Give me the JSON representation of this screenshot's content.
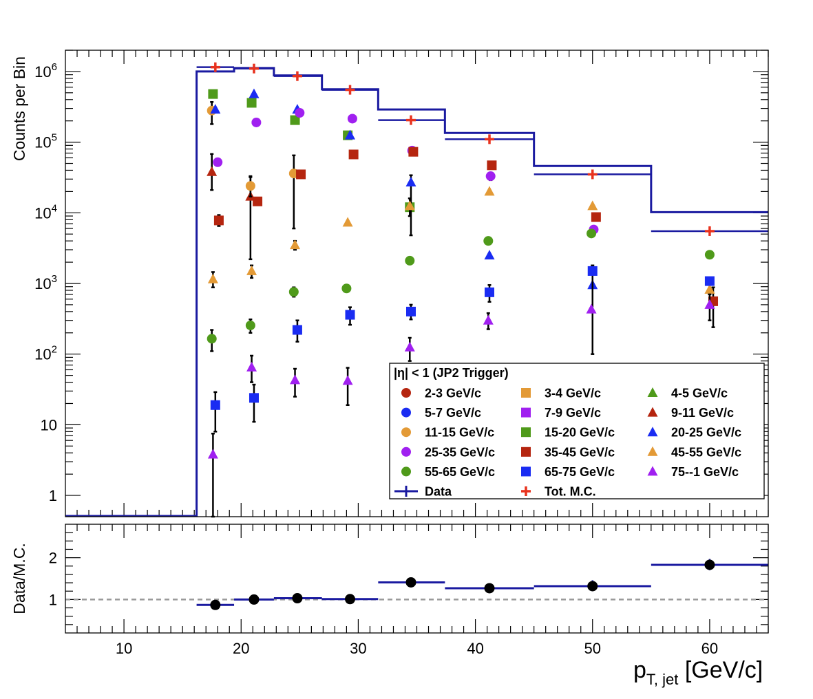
{
  "chart_data": [
    {
      "type": "scatter",
      "panel": "top",
      "ylabel": "Counts per Bin",
      "yscale": "log",
      "ylim": [
        0.5,
        2000000
      ],
      "xlim": [
        5,
        65
      ],
      "y_tick_labels": [
        "1",
        "10",
        "10^2",
        "10^3",
        "10^4",
        "10^5",
        "10^6"
      ],
      "legend": {
        "title": "|η| < 1 (JP2 Trigger)",
        "placement": "bottom-right",
        "entries": [
          {
            "label": "2-3 GeV/c",
            "marker": "circle",
            "color": "#b5250f"
          },
          {
            "label": "3-4 GeV/c",
            "marker": "square",
            "color": "#e39a36"
          },
          {
            "label": "4-5 GeV/c",
            "marker": "triangle",
            "color": "#4f9a1a"
          },
          {
            "label": "5-7 GeV/c",
            "marker": "circle",
            "color": "#1a2cf2"
          },
          {
            "label": "7-9 GeV/c",
            "marker": "square",
            "color": "#a020f0"
          },
          {
            "label": "9-11 GeV/c",
            "marker": "triangle",
            "color": "#b5250f"
          },
          {
            "label": "11-15 GeV/c",
            "marker": "circle",
            "color": "#e39a36"
          },
          {
            "label": "15-20 GeV/c",
            "marker": "square",
            "color": "#4f9a1a"
          },
          {
            "label": "20-25 GeV/c",
            "marker": "triangle",
            "color": "#1a2cf2"
          },
          {
            "label": "25-35 GeV/c",
            "marker": "circle",
            "color": "#a020f0"
          },
          {
            "label": "35-45 GeV/c",
            "marker": "square",
            "color": "#b5250f"
          },
          {
            "label": "45-55 GeV/c",
            "marker": "triangle",
            "color": "#e39a36"
          },
          {
            "label": "55-65 GeV/c",
            "marker": "circle",
            "color": "#4f9a1a"
          },
          {
            "label": "65-75 GeV/c",
            "marker": "square",
            "color": "#1a2cf2"
          },
          {
            "label": "75--1 GeV/c",
            "marker": "triangle",
            "color": "#a020f0"
          },
          {
            "label": "Data",
            "marker": "line",
            "color": "#1a1aa0"
          },
          {
            "label": "Tot. M.C.",
            "marker": "cross",
            "color": "#e8321e"
          }
        ]
      },
      "data_histogram": {
        "name": "Data",
        "color": "#1a1aa0",
        "edges": [
          5,
          16.2,
          19.4,
          22.8,
          26.9,
          31.7,
          37.4,
          45.0,
          55.0,
          65.0
        ],
        "values": [
          0.5,
          1000000,
          1120000,
          880000,
          560000,
          290000,
          135000,
          46000,
          10200
        ]
      },
      "tot_mc": {
        "name": "Tot. M.C.",
        "color": "#e8321e",
        "points": [
          {
            "x": 17.8,
            "y": 1150000,
            "xlo": 16.2,
            "xhi": 19.4
          },
          {
            "x": 21.1,
            "y": 1100000,
            "xlo": 19.4,
            "xhi": 22.8
          },
          {
            "x": 24.8,
            "y": 860000,
            "xlo": 22.8,
            "xhi": 26.9
          },
          {
            "x": 29.3,
            "y": 550000,
            "xlo": 26.9,
            "xhi": 31.7
          },
          {
            "x": 34.5,
            "y": 205000,
            "xlo": 31.7,
            "xhi": 37.4
          },
          {
            "x": 41.2,
            "y": 110000,
            "xlo": 37.4,
            "xhi": 45.0
          },
          {
            "x": 50.0,
            "y": 35000,
            "xlo": 45.0,
            "xhi": 55.0
          },
          {
            "x": 60.0,
            "y": 5500,
            "xlo": 55.0,
            "xhi": 65.0
          }
        ]
      },
      "series": [
        {
          "name": "9-11 GeV/c",
          "marker": "triangle",
          "color": "#b5250f",
          "points": [
            {
              "x": 17.5,
              "y": 38000,
              "ylo": 21000,
              "yhi": 68000
            },
            {
              "x": 20.8,
              "y": 17000,
              "ylo": 2200,
              "yhi": 32000
            }
          ]
        },
        {
          "name": "11-15 GeV/c",
          "marker": "circle",
          "color": "#e39a36",
          "points": [
            {
              "x": 17.5,
              "y": 280000,
              "ylo": 180000,
              "yhi": 370000
            },
            {
              "x": 20.8,
              "y": 24000,
              "ylo": 17000,
              "yhi": 33000
            },
            {
              "x": 24.5,
              "y": 36000,
              "ylo": 6000,
              "yhi": 65000
            }
          ]
        },
        {
          "name": "15-20 GeV/c",
          "marker": "square",
          "color": "#4f9a1a",
          "points": [
            {
              "x": 17.6,
              "y": 480000
            },
            {
              "x": 20.9,
              "y": 360000
            },
            {
              "x": 24.6,
              "y": 205000
            },
            {
              "x": 29.1,
              "y": 125000
            },
            {
              "x": 34.4,
              "y": 12000
            }
          ]
        },
        {
          "name": "20-25 GeV/c",
          "marker": "triangle",
          "color": "#1a2cf2",
          "points": [
            {
              "x": 17.8,
              "y": 290000
            },
            {
              "x": 21.1,
              "y": 480000
            },
            {
              "x": 24.8,
              "y": 290000
            },
            {
              "x": 29.3,
              "y": 125000
            },
            {
              "x": 34.5,
              "y": 27000,
              "ylo": 4800,
              "yhi": 34000
            },
            {
              "x": 41.2,
              "y": 2500
            },
            {
              "x": 50.0,
              "y": 950
            }
          ]
        },
        {
          "name": "25-35 GeV/c",
          "marker": "circle",
          "color": "#a020f0",
          "points": [
            {
              "x": 18.0,
              "y": 52000,
              "ylo": 46000,
              "yhi": 58000
            },
            {
              "x": 21.3,
              "y": 190000
            },
            {
              "x": 25.0,
              "y": 260000
            },
            {
              "x": 29.5,
              "y": 215000
            },
            {
              "x": 34.6,
              "y": 76000
            },
            {
              "x": 41.3,
              "y": 33000,
              "ylo": 29000,
              "yhi": 37000
            },
            {
              "x": 50.1,
              "y": 5800
            }
          ]
        },
        {
          "name": "35-45 GeV/c",
          "marker": "square",
          "color": "#b5250f",
          "points": [
            {
              "x": 18.1,
              "y": 7800,
              "ylo": 6500,
              "yhi": 9300
            },
            {
              "x": 21.4,
              "y": 14500
            },
            {
              "x": 25.1,
              "y": 35000
            },
            {
              "x": 29.6,
              "y": 67000
            },
            {
              "x": 34.7,
              "y": 73000
            },
            {
              "x": 41.4,
              "y": 47000
            },
            {
              "x": 50.3,
              "y": 8700
            },
            {
              "x": 60.3,
              "y": 560,
              "ylo": 240,
              "yhi": 880
            }
          ]
        },
        {
          "name": "45-55 GeV/c",
          "marker": "triangle",
          "color": "#e39a36",
          "points": [
            {
              "x": 17.6,
              "y": 1150,
              "ylo": 880,
              "yhi": 1450
            },
            {
              "x": 20.9,
              "y": 1500,
              "ylo": 1200,
              "yhi": 1800
            },
            {
              "x": 24.6,
              "y": 3500,
              "ylo": 3000,
              "yhi": 4000
            },
            {
              "x": 29.1,
              "y": 7300
            },
            {
              "x": 34.4,
              "y": 12500,
              "ylo": 9000,
              "yhi": 16000
            },
            {
              "x": 41.2,
              "y": 20000
            },
            {
              "x": 50.0,
              "y": 12500
            },
            {
              "x": 60.0,
              "y": 820
            }
          ]
        },
        {
          "name": "55-65 GeV/c",
          "marker": "circle",
          "color": "#4f9a1a",
          "points": [
            {
              "x": 17.5,
              "y": 165,
              "ylo": 110,
              "yhi": 220
            },
            {
              "x": 20.8,
              "y": 255,
              "ylo": 200,
              "yhi": 310
            },
            {
              "x": 24.5,
              "y": 760,
              "ylo": 650,
              "yhi": 880
            },
            {
              "x": 29.0,
              "y": 850
            },
            {
              "x": 34.4,
              "y": 2100
            },
            {
              "x": 41.1,
              "y": 4000
            },
            {
              "x": 49.9,
              "y": 5100
            },
            {
              "x": 60.0,
              "y": 2550
            }
          ]
        },
        {
          "name": "65-75 GeV/c",
          "marker": "square",
          "color": "#1a2cf2",
          "points": [
            {
              "x": 17.8,
              "y": 19,
              "ylo": 8,
              "yhi": 29
            },
            {
              "x": 21.1,
              "y": 24,
              "ylo": 11,
              "yhi": 37
            },
            {
              "x": 24.8,
              "y": 220,
              "ylo": 150,
              "yhi": 300
            },
            {
              "x": 29.3,
              "y": 360,
              "ylo": 260,
              "yhi": 460
            },
            {
              "x": 34.5,
              "y": 400,
              "ylo": 310,
              "yhi": 500
            },
            {
              "x": 41.2,
              "y": 750,
              "ylo": 550,
              "yhi": 950
            },
            {
              "x": 50.0,
              "y": 1500,
              "ylo": 100,
              "yhi": 1800
            },
            {
              "x": 60.0,
              "y": 1080
            }
          ]
        },
        {
          "name": "75--1 GeV/c",
          "marker": "triangle",
          "color": "#a020f0",
          "points": [
            {
              "x": 17.6,
              "y": 3.8,
              "ylo": 0.5,
              "yhi": 7.5
            },
            {
              "x": 20.9,
              "y": 65,
              "ylo": 40,
              "yhi": 95
            },
            {
              "x": 24.6,
              "y": 43,
              "ylo": 25,
              "yhi": 62
            },
            {
              "x": 29.1,
              "y": 42,
              "ylo": 19,
              "yhi": 64
            },
            {
              "x": 34.4,
              "y": 125,
              "ylo": 80,
              "yhi": 170
            },
            {
              "x": 41.1,
              "y": 300,
              "ylo": 225,
              "yhi": 380
            },
            {
              "x": 49.9,
              "y": 430
            },
            {
              "x": 60.0,
              "y": 500,
              "ylo": 300,
              "yhi": 700
            }
          ]
        }
      ]
    },
    {
      "type": "scatter",
      "panel": "bottom",
      "ylabel": "Data/M.C.",
      "xlabel": "p_{T, jet} [GeV/c]",
      "xlabel_main": "p",
      "xlabel_sub": "T, jet",
      "xlabel_unit": " [GeV/c]",
      "ylim": [
        0.2,
        2.8
      ],
      "xlim": [
        5,
        65
      ],
      "y_ticks": [
        1,
        2
      ],
      "x_ticks": [
        10,
        20,
        30,
        40,
        50,
        60
      ],
      "reference_line": 1,
      "ratio_line_color": "#1a1aa0",
      "points": [
        {
          "x": 17.8,
          "y": 0.87,
          "xlo": 16.2,
          "xhi": 19.4,
          "ylo": 0.84,
          "yhi": 0.9
        },
        {
          "x": 21.1,
          "y": 1.0,
          "xlo": 19.4,
          "xhi": 22.8,
          "ylo": 0.97,
          "yhi": 1.03
        },
        {
          "x": 24.8,
          "y": 1.03,
          "xlo": 22.8,
          "xhi": 26.9,
          "ylo": 1.0,
          "yhi": 1.06
        },
        {
          "x": 29.3,
          "y": 1.01,
          "xlo": 26.9,
          "xhi": 31.7,
          "ylo": 0.98,
          "yhi": 1.04
        },
        {
          "x": 34.5,
          "y": 1.41,
          "xlo": 31.7,
          "xhi": 37.4,
          "ylo": 1.38,
          "yhi": 1.44
        },
        {
          "x": 41.2,
          "y": 1.27,
          "xlo": 37.4,
          "xhi": 45.0,
          "ylo": 1.24,
          "yhi": 1.3
        },
        {
          "x": 50.0,
          "y": 1.32,
          "xlo": 45.0,
          "xhi": 55.0,
          "ylo": 1.2,
          "yhi": 1.46
        },
        {
          "x": 60.0,
          "y": 1.83,
          "xlo": 55.0,
          "xhi": 65.0,
          "ylo": 1.7,
          "yhi": 1.97
        }
      ]
    }
  ]
}
